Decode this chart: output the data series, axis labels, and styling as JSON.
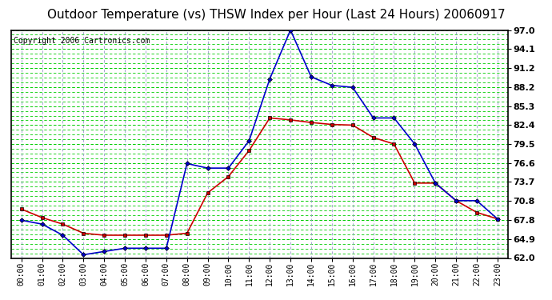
{
  "title": "Outdoor Temperature (vs) THSW Index per Hour (Last 24 Hours) 20060917",
  "copyright": "Copyright 2006 Cartronics.com",
  "hours": [
    "00:00",
    "01:00",
    "02:00",
    "03:00",
    "04:00",
    "05:00",
    "06:00",
    "07:00",
    "08:00",
    "09:00",
    "10:00",
    "11:00",
    "12:00",
    "13:00",
    "14:00",
    "15:00",
    "16:00",
    "17:00",
    "18:00",
    "19:00",
    "20:00",
    "21:00",
    "22:00",
    "23:00"
  ],
  "red_temp": [
    69.5,
    68.2,
    67.2,
    65.8,
    65.5,
    65.5,
    65.5,
    65.5,
    65.8,
    72.0,
    74.5,
    78.5,
    83.5,
    83.2,
    82.8,
    82.5,
    82.4,
    80.5,
    79.5,
    73.5,
    73.5,
    70.8,
    69.0,
    68.0
  ],
  "blue_thsw": [
    67.8,
    67.2,
    65.5,
    62.5,
    63.0,
    63.5,
    63.5,
    63.5,
    76.5,
    75.8,
    75.8,
    80.0,
    89.5,
    97.0,
    89.8,
    88.5,
    88.2,
    83.5,
    83.5,
    79.5,
    73.5,
    70.8,
    70.8,
    68.0
  ],
  "ylim": [
    62.0,
    97.0
  ],
  "yticks": [
    62.0,
    64.9,
    67.8,
    70.8,
    73.7,
    76.6,
    79.5,
    82.4,
    85.3,
    88.2,
    91.2,
    94.1,
    97.0
  ],
  "background_color": "#ffffff",
  "plot_bg_color": "#ffffff",
  "grid_color": "#00cc00",
  "vgrid_color": "#9999cc",
  "red_color": "#cc0000",
  "blue_color": "#0000cc",
  "title_fontsize": 11,
  "copyright_fontsize": 7,
  "tick_fontsize": 8,
  "xlabel_fontsize": 7
}
